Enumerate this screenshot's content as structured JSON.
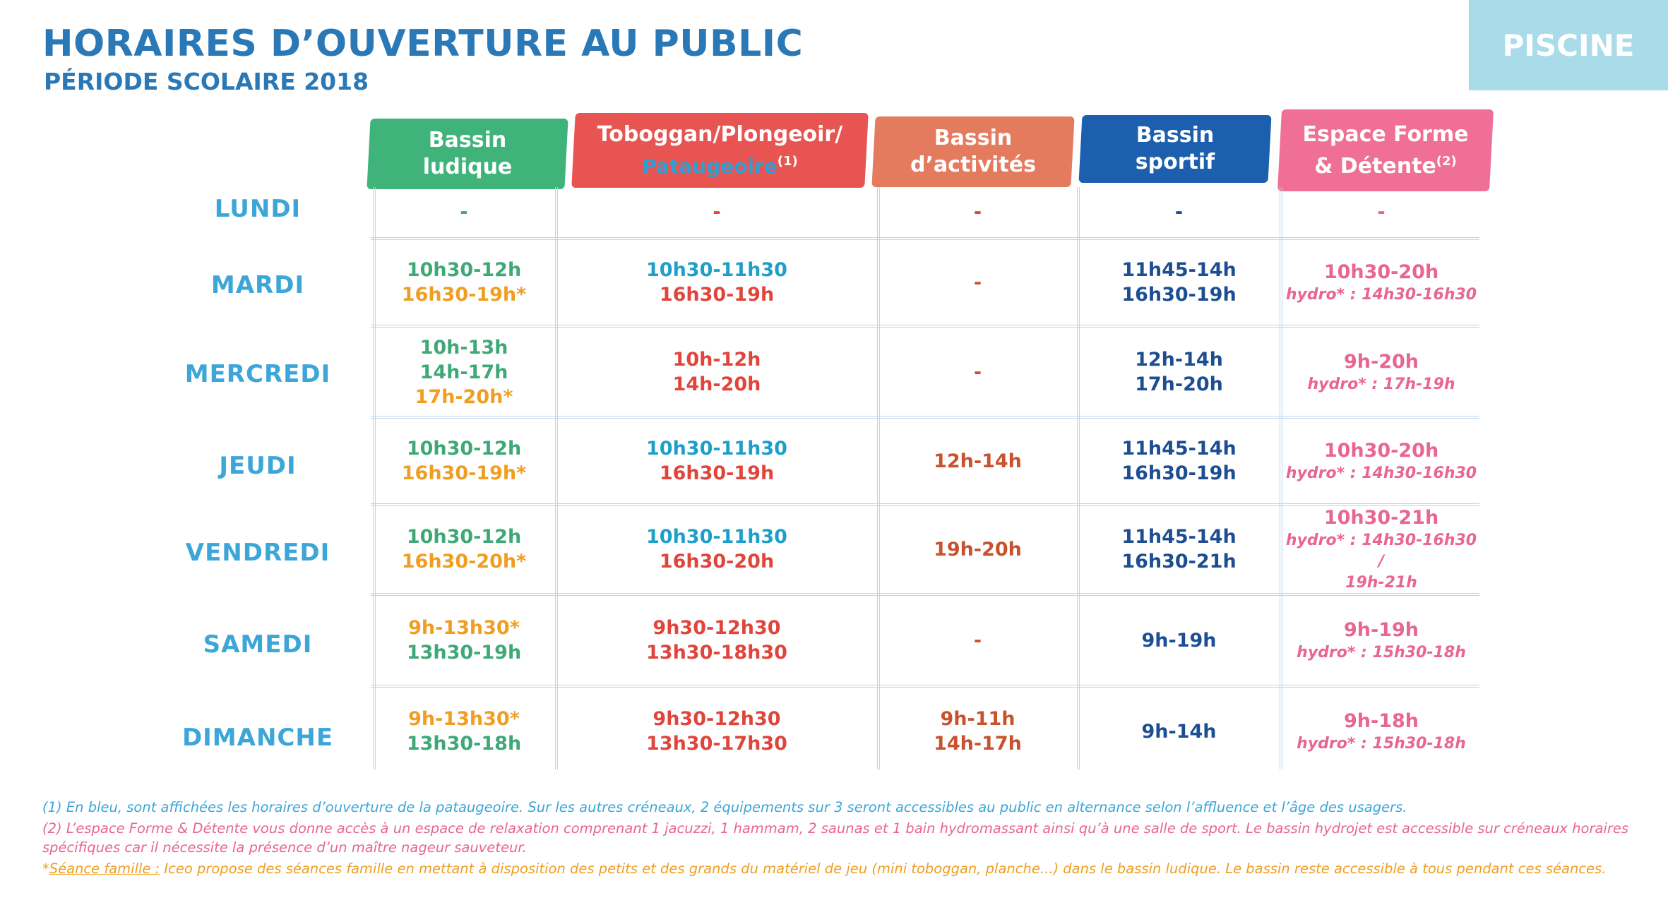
{
  "header": {
    "title": "HORAIRES D’OUVERTURE AU PUBLIC",
    "subtitle": "PÉRIODE SCOLAIRE 2018",
    "badge": "PISCINE"
  },
  "columns": [
    {
      "line1": "Bassin",
      "line2": "ludique",
      "color": "#3fb37a"
    },
    {
      "line1": "Toboggan/Plongeoir/",
      "line2": "Pataugeoire",
      "sup": "(1)",
      "color": "#e85452"
    },
    {
      "line1": "Bassin",
      "line2": "d’activités",
      "color": "#e47a5e"
    },
    {
      "line1": "Bassin",
      "line2": "sportif",
      "color": "#1c5fae"
    },
    {
      "line1": "Espace Forme",
      "line2": "& Détente",
      "sup": "(2)",
      "color": "#ef6f96"
    }
  ],
  "days": [
    "LUNDI",
    "MARDI",
    "MERCREDI",
    "JEUDI",
    "VENDREDI",
    "SAMEDI",
    "DIMANCHE"
  ],
  "rows": [
    {
      "ludique": [
        "-"
      ],
      "toboggan": [
        "-"
      ],
      "activites": [
        "-"
      ],
      "sportif": [
        "-"
      ],
      "forme": {
        "main": "-",
        "hydro": ""
      }
    },
    {
      "ludique": [
        "10h30-12h",
        "16h30-19h*"
      ],
      "toboggan": [
        "10h30-11h30",
        "16h30-19h"
      ],
      "activites": [
        "-"
      ],
      "sportif": [
        "11h45-14h",
        "16h30-19h"
      ],
      "forme": {
        "main": "10h30-20h",
        "hydro": "hydro* : 14h30-16h30"
      }
    },
    {
      "ludique": [
        "10h-13h",
        "14h-17h",
        "17h-20h*"
      ],
      "toboggan": [
        "10h-12h",
        "14h-20h"
      ],
      "activites": [
        "-"
      ],
      "sportif": [
        "12h-14h",
        "17h-20h"
      ],
      "forme": {
        "main": "9h-20h",
        "hydro": "hydro* : 17h-19h"
      }
    },
    {
      "ludique": [
        "10h30-12h",
        "16h30-19h*"
      ],
      "toboggan": [
        "10h30-11h30",
        "16h30-19h"
      ],
      "activites": [
        "12h-14h"
      ],
      "sportif": [
        "11h45-14h",
        "16h30-19h"
      ],
      "forme": {
        "main": "10h30-20h",
        "hydro": "hydro* : 14h30-16h30"
      }
    },
    {
      "ludique": [
        "10h30-12h",
        "16h30-20h*"
      ],
      "toboggan": [
        "10h30-11h30",
        "16h30-20h"
      ],
      "activites": [
        "19h-20h"
      ],
      "sportif": [
        "11h45-14h",
        "16h30-21h"
      ],
      "forme": {
        "main": "10h30-21h",
        "hydro": "hydro* : 14h30-16h30 /",
        "hydro2": "19h-21h"
      }
    },
    {
      "ludique": [
        "9h-13h30*",
        "13h30-19h"
      ],
      "toboggan": [
        "9h30-12h30",
        "13h30-18h30"
      ],
      "activites": [
        "-"
      ],
      "sportif": [
        "9h-19h"
      ],
      "forme": {
        "main": "9h-19h",
        "hydro": "hydro* : 15h30-18h"
      }
    },
    {
      "ludique": [
        "9h-13h30*",
        "13h30-18h"
      ],
      "toboggan": [
        "9h30-12h30",
        "13h30-17h30"
      ],
      "activites": [
        "9h-11h",
        "14h-17h"
      ],
      "sportif": [
        "9h-14h"
      ],
      "forme": {
        "main": "9h-18h",
        "hydro": "hydro* : 15h30-18h"
      }
    }
  ],
  "notes": {
    "n1": "(1) En bleu, sont affichées les horaires d’ouverture de la pataugeoire. Sur les autres créneaux, 2 équipements sur 3 seront accessibles au public en alternance selon l’affluence et l’âge des usagers.",
    "n2": "(2) L’espace Forme & Détente vous donne accès à un espace de relaxation comprenant 1 jacuzzi, 1 hammam, 2 saunas et 1 bain hydromassant ainsi qu’à une salle de sport. Le bassin hydrojet est accessible sur créneaux horaires spécifiques car il nécessite la présence d’un maître nageur sauveteur.",
    "n3_star": "*",
    "n3_label": "Séance famille :",
    "n3_text": " Iceo propose des séances famille en mettant à disposition des petits et des grands du matériel de jeu (mini toboggan, planche...) dans le bassin ludique. Le bassin reste accessible à tous pendant ces séances."
  }
}
